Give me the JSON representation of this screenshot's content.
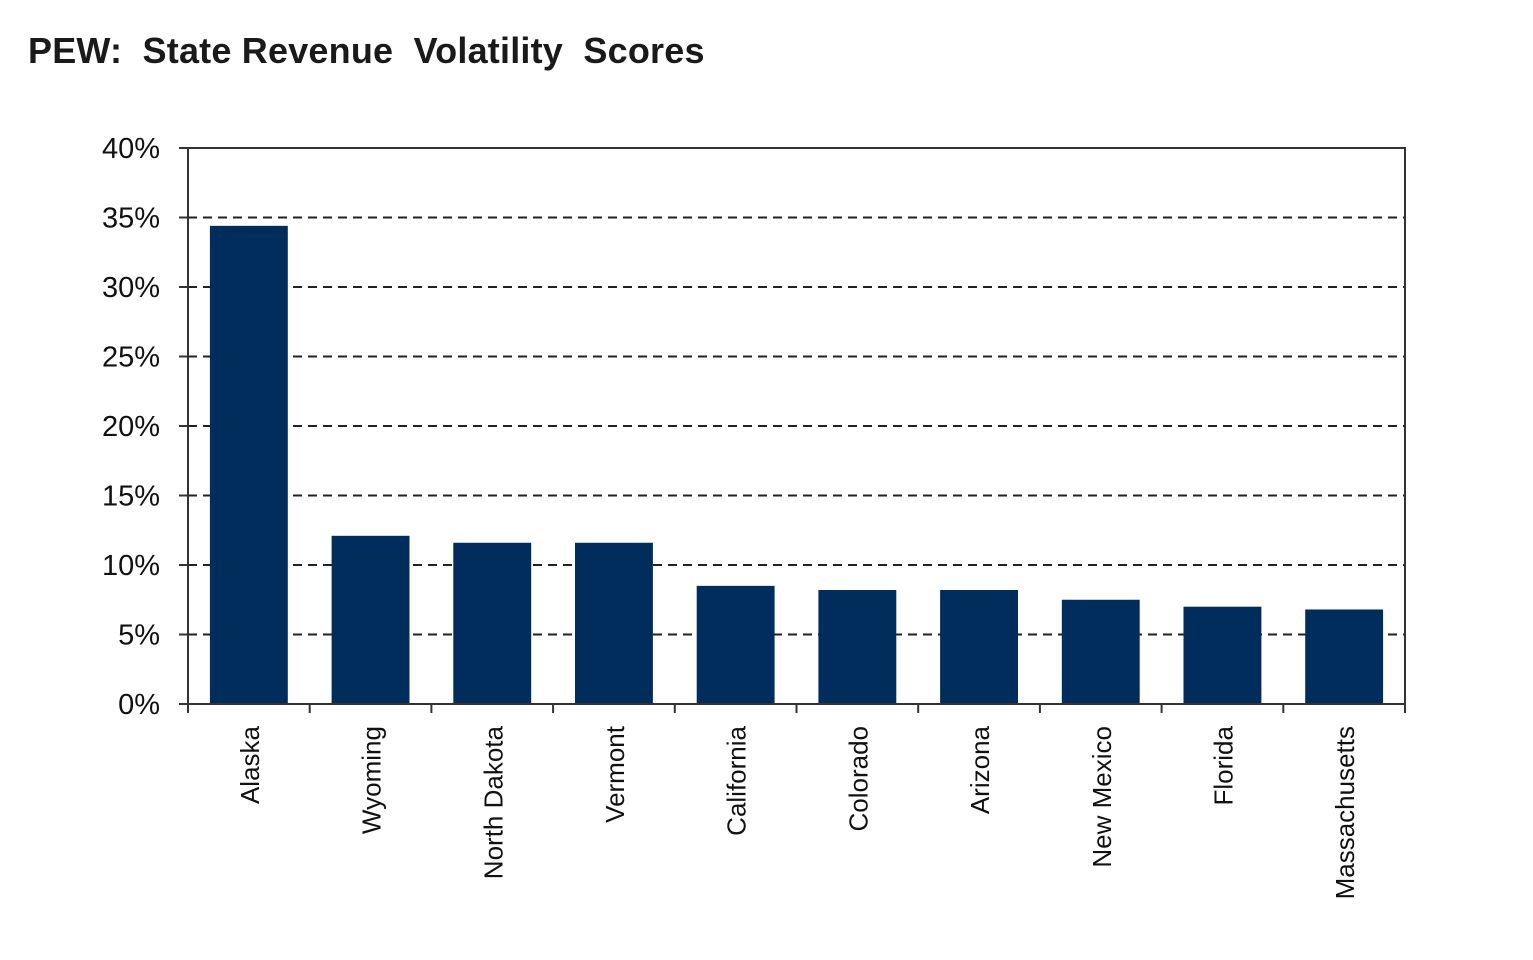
{
  "chart_data": {
    "type": "bar",
    "title": "PEW:  State Revenue  Volatility  Scores",
    "xlabel": "",
    "ylabel": "",
    "categories": [
      "Alaska",
      "Wyoming",
      "North Dakota",
      "Vermont",
      "California",
      "Colorado",
      "Arizona",
      "New Mexico",
      "Florida",
      "Massachusetts"
    ],
    "values": [
      34.4,
      12.1,
      11.6,
      11.6,
      8.5,
      8.2,
      8.2,
      7.5,
      7.0,
      6.8
    ],
    "ylim": [
      0,
      40
    ],
    "yticks": [
      0,
      5,
      10,
      15,
      20,
      25,
      30,
      35,
      40
    ],
    "ytick_labels": [
      "0%",
      "5%",
      "10%",
      "15%",
      "20%",
      "25%",
      "30%",
      "35%",
      "40%"
    ],
    "grid": true,
    "grid_style": "dashed",
    "legend": "none",
    "bar_color": "#002d5c"
  }
}
